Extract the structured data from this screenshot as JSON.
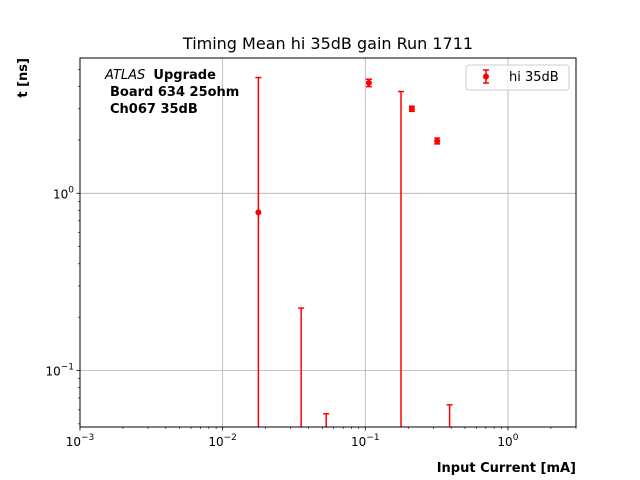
{
  "chart_data": {
    "type": "scatter",
    "title": "Timing Mean hi 35dB gain Run 1711",
    "xlabel": "Input Current [mA]",
    "ylabel": "t [ns]",
    "xscale": "log",
    "yscale": "log",
    "xlim": [
      0.001,
      3.0
    ],
    "ylim": [
      0.048,
      5.8
    ],
    "grid": true,
    "legend_position": "top-right",
    "x_ticks": [
      {
        "value": 0.001,
        "base": "10",
        "exp": "−3"
      },
      {
        "value": 0.01,
        "base": "10",
        "exp": "−2"
      },
      {
        "value": 0.1,
        "base": "10",
        "exp": "−1"
      },
      {
        "value": 1,
        "base": "10",
        "exp": "0"
      }
    ],
    "y_ticks": [
      {
        "value": 0.1,
        "base": "10",
        "exp": "−1"
      },
      {
        "value": 1,
        "base": "10",
        "exp": "0"
      }
    ],
    "annotation": {
      "atlas": "ATLAS",
      "upgrade": "Upgrade",
      "line2": "Board 634 25ohm",
      "line3": "Ch067 35dB"
    },
    "series": [
      {
        "name": "hi 35dB",
        "color": "#ff0000",
        "points": [
          {
            "x": 0.0178,
            "y": 0.78,
            "ylow": 0.04,
            "yhigh": 4.5
          },
          {
            "x": 0.0355,
            "y": null,
            "ylow": 0.04,
            "yhigh": 0.225
          },
          {
            "x": 0.0532,
            "y": null,
            "ylow": 0.04,
            "yhigh": 0.057
          },
          {
            "x": 0.106,
            "y": 4.2,
            "ylow": 4.0,
            "yhigh": 4.4
          },
          {
            "x": 0.178,
            "y": null,
            "ylow": 0.04,
            "yhigh": 3.75
          },
          {
            "x": 0.212,
            "y": 3.0,
            "ylow": 2.9,
            "yhigh": 3.1
          },
          {
            "x": 0.319,
            "y": 1.97,
            "ylow": 1.9,
            "yhigh": 2.05
          },
          {
            "x": 0.39,
            "y": null,
            "ylow": 0.04,
            "yhigh": 0.064
          }
        ]
      }
    ]
  }
}
